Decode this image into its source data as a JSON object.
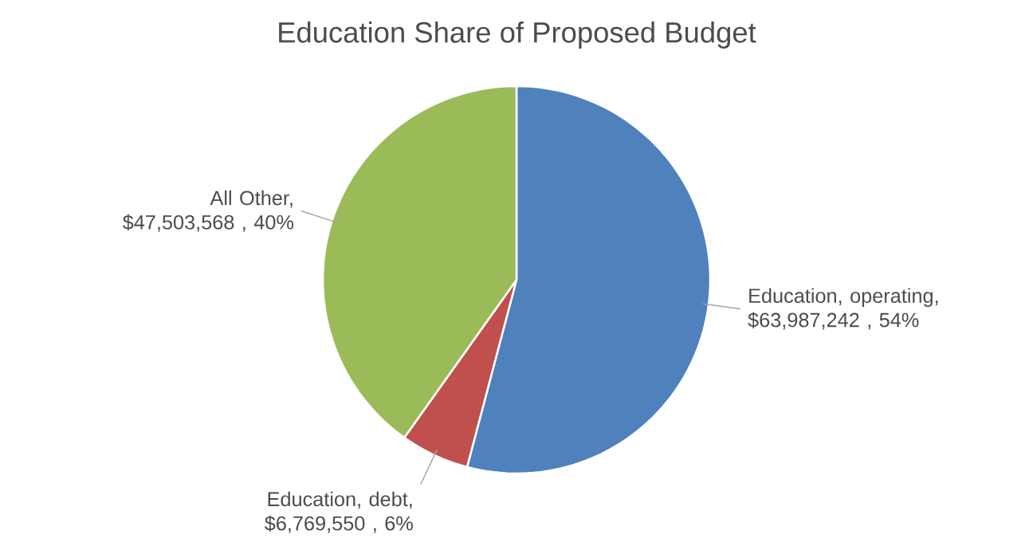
{
  "chart_data": {
    "type": "pie",
    "title": "Education Share of Proposed Budget",
    "categories": [
      "Education, operating, $63,987,242 , 54%",
      "Education, debt, $6,769,550 , 6%",
      "All Other, $47,503,568 , 40%"
    ],
    "values": [
      63987242,
      6769550,
      47503568
    ],
    "colors": [
      "#4f81bd",
      "#c0504d",
      "#9bbb59"
    ]
  }
}
